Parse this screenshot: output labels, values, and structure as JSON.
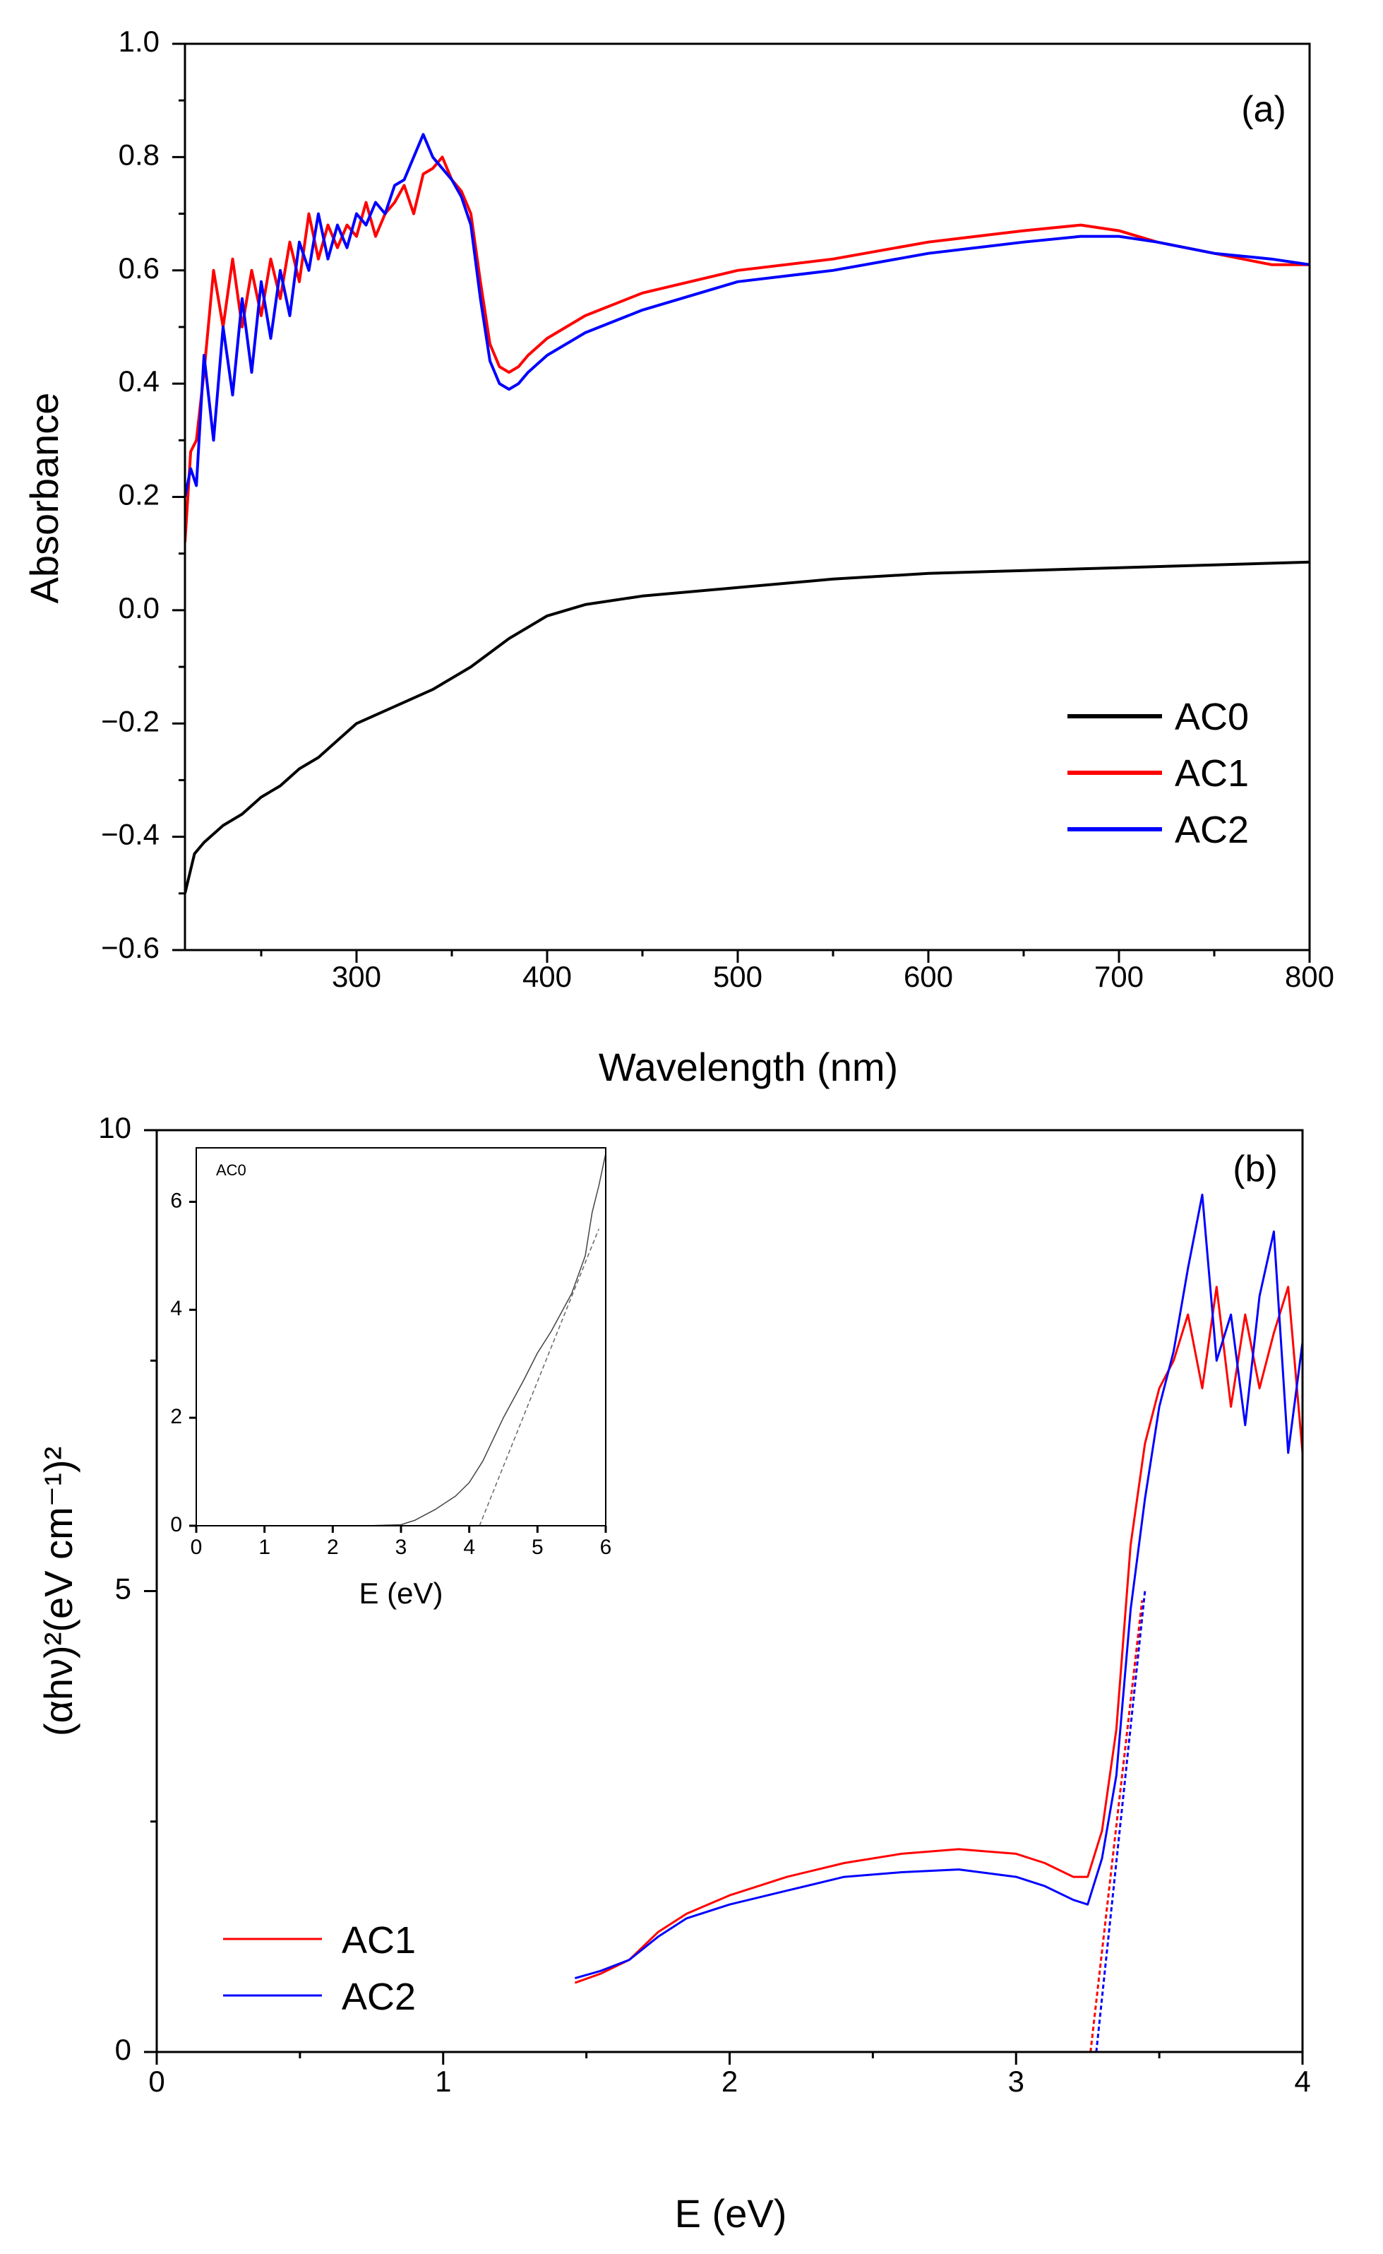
{
  "chart_data": [
    {
      "panel": "a",
      "type": "line",
      "panel_label": "(a)",
      "title": "",
      "xlabel": "Wavelength (nm)",
      "ylabel": "Absorbance",
      "xlim": [
        210,
        800
      ],
      "ylim": [
        -0.6,
        1.0
      ],
      "x_ticks": [
        300,
        400,
        500,
        600,
        700,
        800
      ],
      "x_tick_labels": [
        "300",
        "400",
        "500",
        "600",
        "700",
        "800"
      ],
      "y_ticks": [
        -0.6,
        -0.4,
        -0.2,
        0.0,
        0.2,
        0.4,
        0.6,
        0.8,
        1.0
      ],
      "y_tick_labels": [
        "−0.6",
        "−0.4",
        "−0.2",
        "0.0",
        "0.2",
        "0.4",
        "0.6",
        "0.8",
        "1.0"
      ],
      "legend_position": "bottom-right",
      "series": [
        {
          "name": "AC0",
          "color": "#000000",
          "x": [
            210,
            215,
            220,
            230,
            240,
            250,
            260,
            270,
            280,
            290,
            300,
            320,
            340,
            360,
            380,
            400,
            420,
            450,
            500,
            550,
            600,
            650,
            700,
            750,
            800
          ],
          "y": [
            -0.5,
            -0.43,
            -0.41,
            -0.38,
            -0.36,
            -0.33,
            -0.31,
            -0.28,
            -0.26,
            -0.23,
            -0.2,
            -0.17,
            -0.14,
            -0.1,
            -0.05,
            -0.01,
            0.01,
            0.025,
            0.04,
            0.055,
            0.065,
            0.07,
            0.075,
            0.08,
            0.085
          ]
        },
        {
          "name": "AC1",
          "color": "#ff0000",
          "x": [
            210,
            213,
            216,
            220,
            225,
            230,
            235,
            240,
            245,
            250,
            255,
            260,
            265,
            270,
            275,
            280,
            285,
            290,
            295,
            300,
            305,
            310,
            315,
            320,
            325,
            330,
            335,
            340,
            345,
            350,
            355,
            360,
            365,
            370,
            375,
            380,
            385,
            390,
            400,
            420,
            450,
            500,
            550,
            600,
            650,
            680,
            700,
            720,
            750,
            780,
            800
          ],
          "y": [
            0.12,
            0.28,
            0.3,
            0.42,
            0.6,
            0.5,
            0.62,
            0.5,
            0.6,
            0.52,
            0.62,
            0.55,
            0.65,
            0.58,
            0.7,
            0.62,
            0.68,
            0.64,
            0.68,
            0.66,
            0.72,
            0.66,
            0.7,
            0.72,
            0.75,
            0.7,
            0.77,
            0.78,
            0.8,
            0.76,
            0.74,
            0.7,
            0.58,
            0.47,
            0.43,
            0.42,
            0.43,
            0.45,
            0.48,
            0.52,
            0.56,
            0.6,
            0.62,
            0.65,
            0.67,
            0.68,
            0.67,
            0.65,
            0.63,
            0.61,
            0.61
          ]
        },
        {
          "name": "AC2",
          "color": "#0000ff",
          "x": [
            210,
            213,
            216,
            220,
            225,
            230,
            235,
            240,
            245,
            250,
            255,
            260,
            265,
            270,
            275,
            280,
            285,
            290,
            295,
            300,
            305,
            310,
            315,
            320,
            325,
            330,
            335,
            340,
            345,
            350,
            355,
            360,
            365,
            370,
            375,
            380,
            385,
            390,
            400,
            420,
            450,
            500,
            550,
            600,
            650,
            680,
            700,
            720,
            750,
            780,
            800
          ],
          "y": [
            0.2,
            0.25,
            0.22,
            0.45,
            0.3,
            0.5,
            0.38,
            0.55,
            0.42,
            0.58,
            0.48,
            0.6,
            0.52,
            0.65,
            0.6,
            0.7,
            0.62,
            0.68,
            0.64,
            0.7,
            0.68,
            0.72,
            0.7,
            0.75,
            0.76,
            0.8,
            0.84,
            0.8,
            0.78,
            0.76,
            0.73,
            0.68,
            0.55,
            0.44,
            0.4,
            0.39,
            0.4,
            0.42,
            0.45,
            0.49,
            0.53,
            0.58,
            0.6,
            0.63,
            0.65,
            0.66,
            0.66,
            0.65,
            0.63,
            0.62,
            0.61
          ]
        }
      ]
    },
    {
      "panel": "b",
      "type": "line",
      "panel_label": "(b)",
      "title": "",
      "xlabel": "E (eV)",
      "ylabel": "(αhν)²(eV cm⁻¹)²",
      "xlim": [
        0,
        4
      ],
      "ylim": [
        0,
        10
      ],
      "x_ticks": [
        0,
        1,
        2,
        3,
        4
      ],
      "x_tick_labels": [
        "0",
        "1",
        "2",
        "3",
        "4"
      ],
      "y_ticks": [
        0,
        5,
        10
      ],
      "y_tick_labels": [
        "0",
        "5",
        "10"
      ],
      "legend_position": "bottom-left",
      "series": [
        {
          "name": "AC1",
          "color": "#ff0000",
          "x": [
            1.46,
            1.55,
            1.65,
            1.75,
            1.85,
            2.0,
            2.2,
            2.4,
            2.6,
            2.8,
            3.0,
            3.1,
            3.2,
            3.25,
            3.3,
            3.35,
            3.4,
            3.45,
            3.5,
            3.55,
            3.6,
            3.65,
            3.7,
            3.75,
            3.8,
            3.85,
            3.9,
            3.95,
            4.0
          ],
          "y": [
            0.75,
            0.85,
            1.0,
            1.3,
            1.5,
            1.7,
            1.9,
            2.05,
            2.15,
            2.2,
            2.15,
            2.05,
            1.9,
            1.9,
            2.4,
            3.5,
            5.5,
            6.6,
            7.2,
            7.5,
            8.0,
            7.2,
            8.3,
            7.0,
            8.0,
            7.2,
            7.8,
            8.3,
            6.5
          ]
        },
        {
          "name": "AC2",
          "color": "#0000ff",
          "x": [
            1.46,
            1.55,
            1.65,
            1.75,
            1.85,
            2.0,
            2.2,
            2.4,
            2.6,
            2.8,
            3.0,
            3.1,
            3.2,
            3.25,
            3.3,
            3.35,
            3.4,
            3.45,
            3.5,
            3.55,
            3.6,
            3.65,
            3.7,
            3.75,
            3.8,
            3.85,
            3.9,
            3.95,
            4.0
          ],
          "y": [
            0.8,
            0.88,
            1.0,
            1.25,
            1.45,
            1.6,
            1.75,
            1.9,
            1.95,
            1.98,
            1.9,
            1.8,
            1.65,
            1.6,
            2.1,
            3.0,
            4.8,
            6.0,
            7.0,
            7.6,
            8.5,
            9.3,
            7.5,
            8.0,
            6.8,
            8.2,
            8.9,
            6.5,
            7.7
          ]
        },
        {
          "name": "AC1 fit",
          "color": "#ff0000",
          "x": [
            3.26,
            3.44
          ],
          "y": [
            0.0,
            4.9
          ]
        },
        {
          "name": "AC2 fit",
          "color": "#0000ff",
          "x": [
            3.28,
            3.45
          ],
          "y": [
            0.0,
            5.0
          ]
        }
      ]
    },
    {
      "panel": "b-inset",
      "type": "line",
      "title": "AC0",
      "xlabel": "E (eV)",
      "ylabel": "",
      "xlim": [
        0,
        6
      ],
      "ylim": [
        0,
        7
      ],
      "x_ticks": [
        0,
        1,
        2,
        3,
        4,
        5,
        6
      ],
      "x_tick_labels": [
        "0",
        "1",
        "2",
        "3",
        "4",
        "5",
        "6"
      ],
      "y_ticks": [
        0,
        2,
        4,
        6
      ],
      "y_tick_labels": [
        "0",
        "2",
        "4",
        "6"
      ],
      "series": [
        {
          "name": "AC0",
          "color": "#444444",
          "x": [
            1.5,
            2.0,
            2.5,
            3.0,
            3.2,
            3.5,
            3.8,
            4.0,
            4.2,
            4.5,
            4.8,
            5.0,
            5.2,
            5.5,
            5.7,
            5.8,
            5.9,
            6.0
          ],
          "y": [
            0.0,
            0.0,
            0.0,
            0.02,
            0.1,
            0.3,
            0.55,
            0.8,
            1.2,
            2.0,
            2.7,
            3.2,
            3.6,
            4.3,
            5.0,
            5.8,
            6.3,
            6.9
          ]
        },
        {
          "name": "AC0 fit",
          "color": "#666666",
          "x": [
            4.15,
            5.9
          ],
          "y": [
            0.0,
            5.5
          ]
        }
      ]
    }
  ]
}
